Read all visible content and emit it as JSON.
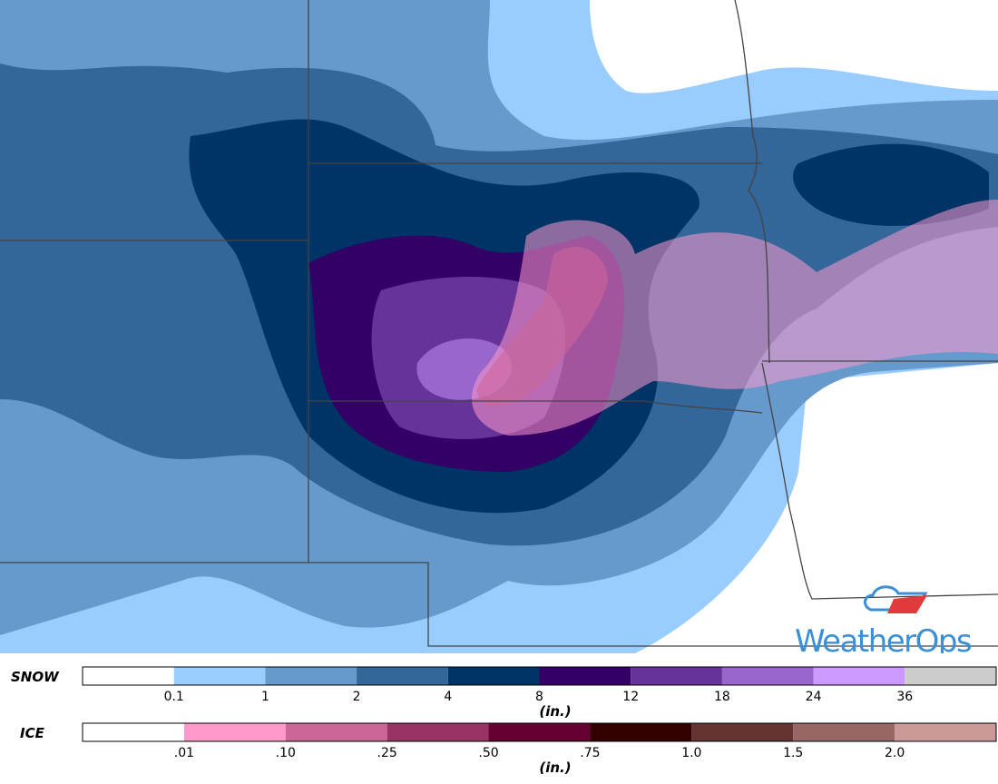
{
  "legend": {
    "snow": {
      "label": "SNOW",
      "unit": "(in.)",
      "colors": [
        "#ffffff",
        "#99ccff",
        "#6699cc",
        "#336699",
        "#003366",
        "#330066",
        "#663399",
        "#9966cc",
        "#cc99ff",
        "#cccccc"
      ],
      "ticks": [
        "0.1",
        "1",
        "2",
        "4",
        "8",
        "12",
        "18",
        "24",
        "36"
      ]
    },
    "ice": {
      "label": "ICE",
      "unit": "(in.)",
      "colors": [
        "#ffffff",
        "#ff99cc",
        "#cc6699",
        "#993366",
        "#660033",
        "#330000",
        "#663333",
        "#996666",
        "#cc9999"
      ],
      "ticks": [
        ".01",
        ".10",
        ".25",
        ".50",
        ".75",
        "1.0",
        "1.5",
        "2.0"
      ]
    }
  },
  "logo": {
    "text": "WeatherOps"
  }
}
